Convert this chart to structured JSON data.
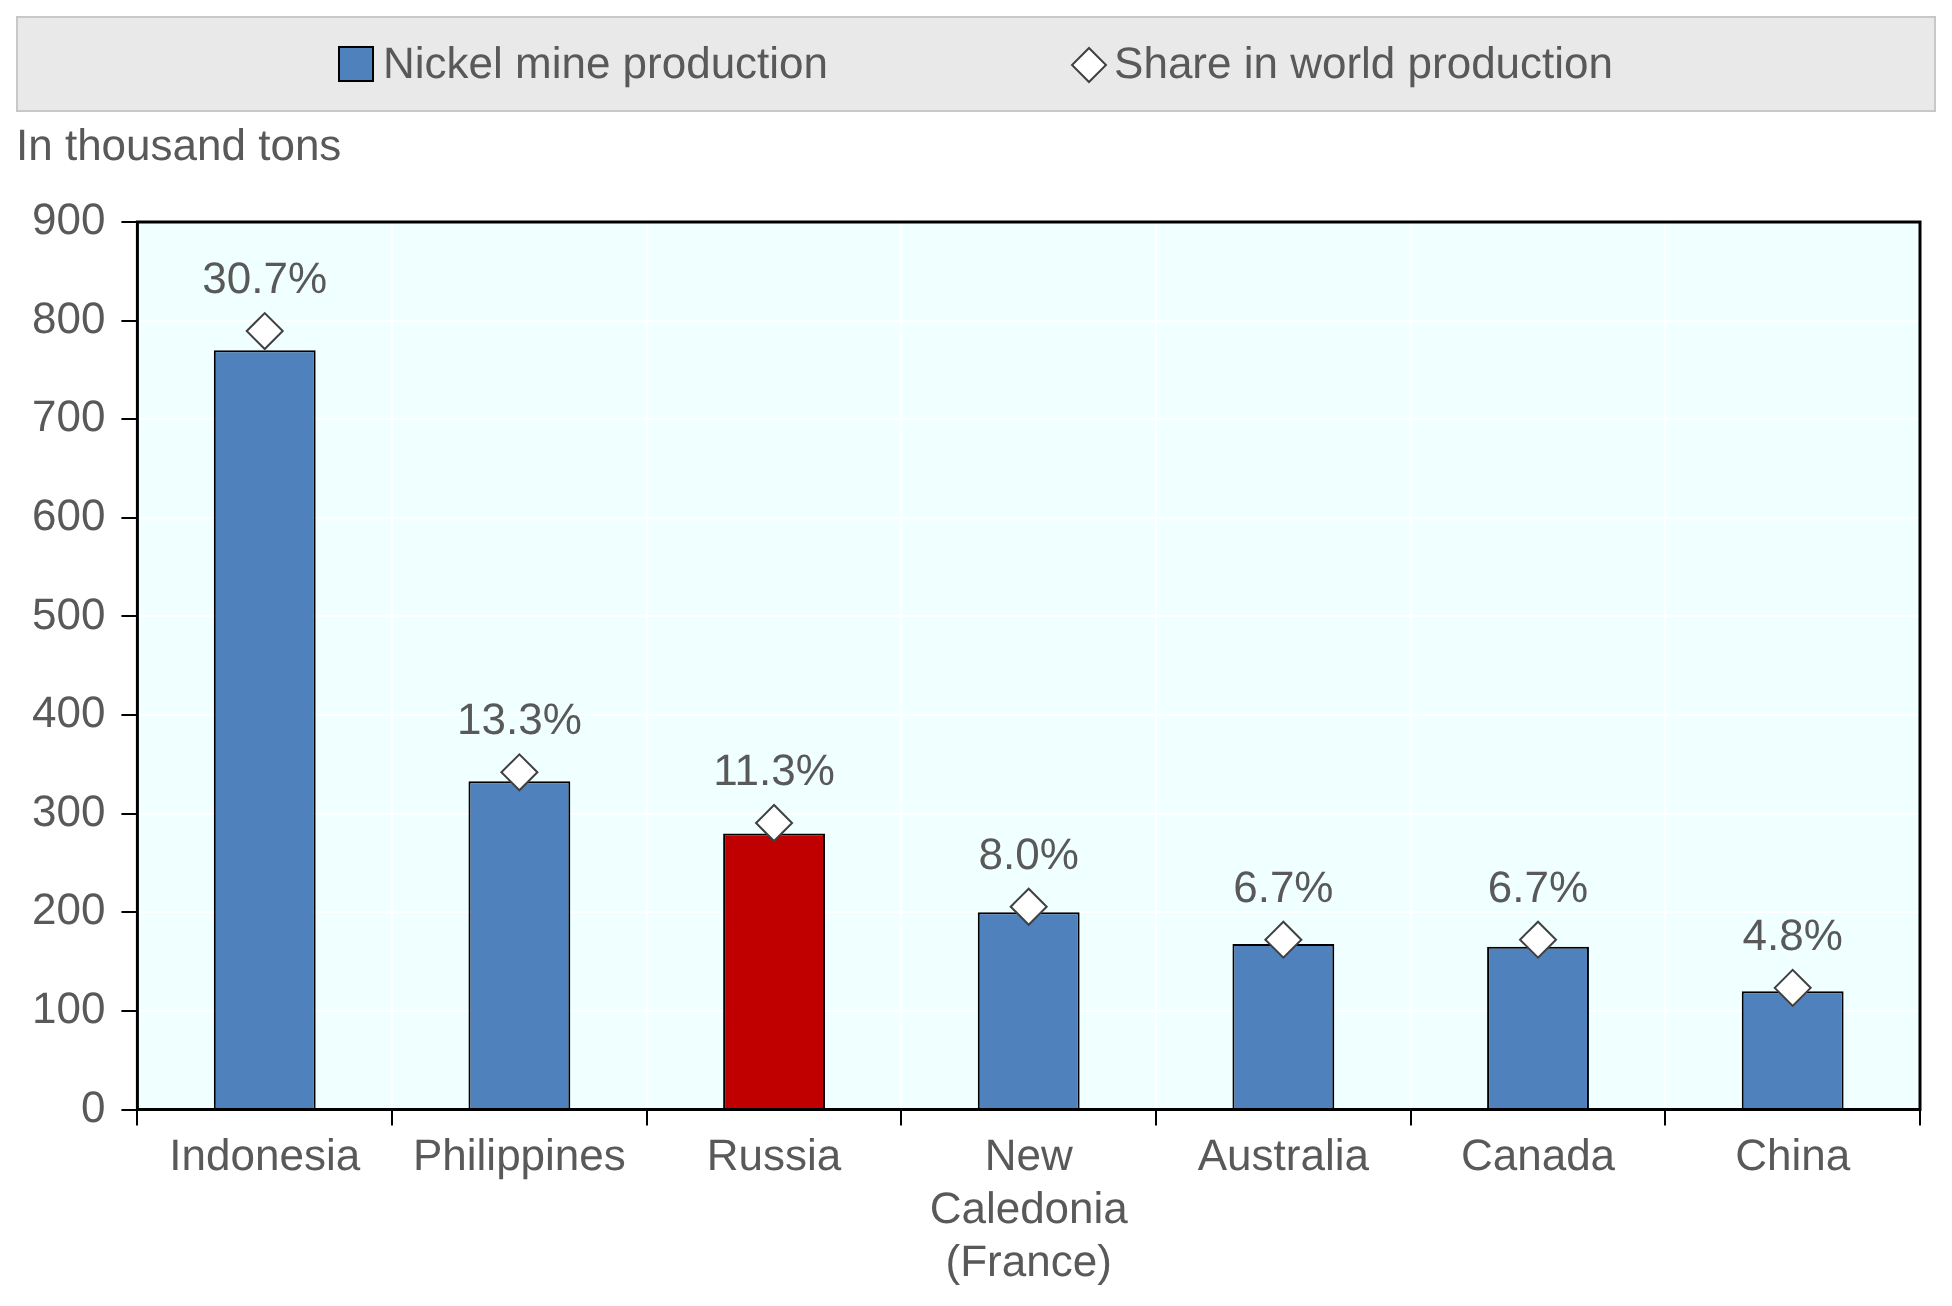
{
  "chart_data": {
    "type": "bar",
    "ylabel": "In thousand tons",
    "categories": [
      "Indonesia",
      "Philippines",
      "Russia",
      "New Caledonia (France)",
      "Australia",
      "Canada",
      "China"
    ],
    "series": [
      {
        "name": "Nickel mine production",
        "color": "#4f81bd",
        "colors": [
          "#4f81bd",
          "#4f81bd",
          "#c00000",
          "#4f81bd",
          "#4f81bd",
          "#4f81bd",
          "#4f81bd"
        ],
        "values": [
          770,
          333,
          280,
          200,
          168,
          165,
          120
        ]
      },
      {
        "name": "Share in world production",
        "type": "scatter",
        "axis": "y2",
        "color": "#ffffff",
        "marker": "diamond",
        "values": [
          30.7,
          13.3,
          11.3,
          8.0,
          6.7,
          6.7,
          4.8
        ],
        "value_labels": [
          "30.7%",
          "13.3%",
          "11.3%",
          "8.0%",
          "6.7%",
          "6.7%",
          "4.8%"
        ]
      }
    ],
    "ylim": [
      0,
      900
    ],
    "yticks": [
      0,
      100,
      200,
      300,
      400,
      500,
      600,
      700,
      800,
      900
    ],
    "y2lim": [
      0,
      35
    ],
    "tick_labels": "xy",
    "grid": true,
    "legend": "top"
  }
}
